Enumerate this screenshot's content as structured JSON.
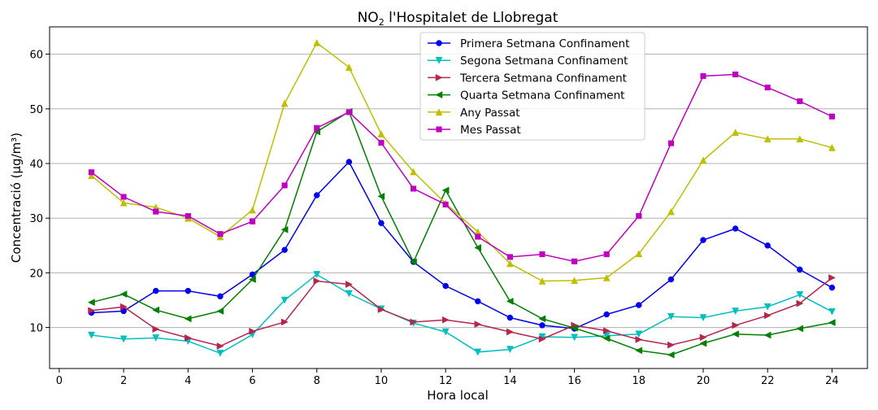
{
  "chart_data": {
    "type": "line",
    "title": "NO₂ l'Hospitalet de Llobregat",
    "title_main": "NO",
    "title_sub": "2",
    "title_rest": " l'Hospitalet de Llobregat",
    "xlabel": "Hora local",
    "ylabel": "Concentració (µg/m³)",
    "xlim": [
      -0.3,
      25.1
    ],
    "ylim": [
      2.5,
      65.0
    ],
    "x_ticks": [
      0,
      2,
      4,
      6,
      8,
      10,
      12,
      14,
      16,
      18,
      20,
      22,
      24
    ],
    "y_ticks": [
      10,
      20,
      30,
      40,
      50,
      60
    ],
    "grid": "horizontal",
    "legend_position": "top-center",
    "x": [
      1,
      2,
      3,
      4,
      5,
      6,
      7,
      8,
      9,
      10,
      11,
      12,
      13,
      14,
      15,
      16,
      17,
      18,
      19,
      20,
      21,
      22,
      23,
      24
    ],
    "series": [
      {
        "name": "Primera Setmana Confinament",
        "color": "#0000ee",
        "marker": "circle",
        "values": [
          12.7,
          13.0,
          16.7,
          16.7,
          15.7,
          19.7,
          24.2,
          34.2,
          40.3,
          29.1,
          22.0,
          17.6,
          14.8,
          11.8,
          10.4,
          9.8,
          12.4,
          14.1,
          18.8,
          26.0,
          28.1,
          25.0,
          20.6,
          17.3
        ]
      },
      {
        "name": "Segona Setmana Confinament",
        "color": "#00bfbf",
        "marker": "triangle-down",
        "values": [
          8.6,
          7.9,
          8.1,
          7.5,
          5.3,
          8.7,
          15.0,
          19.7,
          16.2,
          13.4,
          10.8,
          9.2,
          5.5,
          6.0,
          8.3,
          8.2,
          8.5,
          8.8,
          12.0,
          11.8,
          13.0,
          13.8,
          16.0,
          12.9
        ]
      },
      {
        "name": "Tercera Setmana Confinament",
        "color": "#b5254c",
        "marker": "triangle-right",
        "values": [
          13.1,
          13.8,
          9.7,
          8.1,
          6.6,
          9.3,
          11.0,
          18.5,
          17.9,
          13.3,
          11.0,
          11.4,
          10.6,
          9.2,
          7.9,
          10.4,
          9.4,
          7.8,
          6.8,
          8.2,
          10.4,
          12.2,
          14.4,
          19.1
        ]
      },
      {
        "name": "Quarta Setmana Confinament",
        "color": "#007f00",
        "marker": "triangle-left",
        "values": [
          14.6,
          16.1,
          13.2,
          11.6,
          13.0,
          18.8,
          27.9,
          45.8,
          49.5,
          34.0,
          22.0,
          35.1,
          24.6,
          14.8,
          11.6,
          9.9,
          8.0,
          5.8,
          5.0,
          7.1,
          8.8,
          8.6,
          9.8,
          10.9
        ]
      },
      {
        "name": "Any Passat",
        "color": "#bfbf00",
        "marker": "triangle-up",
        "values": [
          37.8,
          32.8,
          32.0,
          30.0,
          26.6,
          31.5,
          51.0,
          62.1,
          57.6,
          45.4,
          38.5,
          32.7,
          27.5,
          21.7,
          18.5,
          18.6,
          19.1,
          23.5,
          31.2,
          40.6,
          45.7,
          44.5,
          44.5,
          42.9
        ]
      },
      {
        "name": "Mes Passat",
        "color": "#bf00bf",
        "marker": "square",
        "values": [
          38.4,
          33.9,
          31.2,
          30.4,
          27.1,
          29.4,
          36.0,
          46.5,
          49.4,
          43.8,
          35.4,
          32.5,
          26.6,
          22.9,
          23.4,
          22.1,
          23.4,
          30.4,
          43.7,
          56.0,
          56.3,
          53.9,
          51.4,
          48.6
        ]
      }
    ]
  }
}
